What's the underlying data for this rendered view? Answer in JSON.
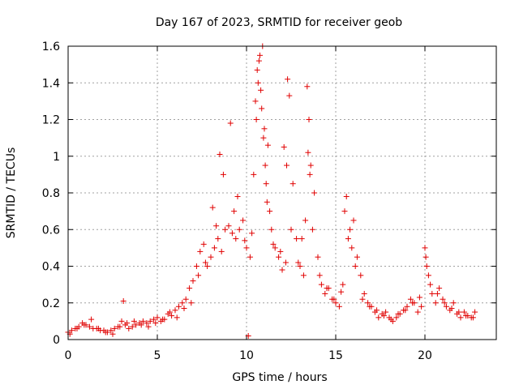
{
  "chart_data": {
    "type": "scatter",
    "title": "Day 167 of 2023, SRMTID for receiver geob",
    "xlabel": "GPS time / hours",
    "ylabel": "SRMTID / TECUs",
    "xlim": [
      0,
      24
    ],
    "ylim": [
      0,
      1.6
    ],
    "xticks": [
      0,
      5,
      10,
      15,
      20
    ],
    "xtick_labels": [
      "0",
      "5",
      "10",
      "15",
      "20"
    ],
    "yticks": [
      0,
      0.2,
      0.4,
      0.6,
      0.8,
      1.0,
      1.2,
      1.4,
      1.6
    ],
    "ytick_labels": [
      "0",
      "0.2",
      "0.4",
      "0.6",
      "0.8",
      "1",
      "1.2",
      "1.4",
      "1.6"
    ],
    "grid": true,
    "marker": "plus",
    "color": "#e00000",
    "series": [
      {
        "name": "SRMTID",
        "x": [
          0.0,
          0.2,
          0.4,
          0.6,
          0.8,
          1.0,
          1.2,
          1.4,
          1.6,
          1.8,
          2.0,
          2.2,
          2.4,
          2.6,
          2.8,
          3.0,
          3.1,
          3.2,
          3.4,
          3.6,
          3.8,
          4.0,
          4.2,
          4.4,
          4.6,
          4.8,
          5.0,
          5.2,
          5.4,
          5.6,
          5.8,
          6.0,
          6.2,
          6.4,
          6.6,
          6.8,
          7.0,
          7.2,
          7.4,
          7.6,
          7.8,
          8.0,
          8.2,
          8.4,
          8.5,
          8.6,
          8.8,
          9.0,
          9.1,
          9.2,
          9.4,
          9.6,
          9.8,
          10.0,
          10.1,
          10.2,
          10.4,
          10.5,
          10.6,
          10.7,
          10.8,
          10.9,
          11.0,
          11.1,
          11.2,
          11.3,
          11.4,
          11.6,
          11.8,
          12.0,
          12.2,
          12.3,
          12.4,
          12.6,
          12.8,
          13.0,
          13.2,
          13.4,
          13.5,
          13.6,
          13.8,
          14.0,
          14.2,
          14.4,
          14.6,
          14.8,
          15.0,
          15.2,
          15.4,
          15.6,
          15.8,
          16.0,
          16.2,
          16.4,
          16.6,
          16.8,
          17.0,
          17.2,
          17.4,
          17.6,
          17.8,
          18.0,
          18.2,
          18.4,
          18.6,
          18.8,
          19.0,
          19.2,
          19.4,
          19.6,
          19.8,
          20.0,
          20.1,
          20.2,
          20.4,
          20.6,
          20.8,
          21.0,
          21.2,
          21.4,
          21.6,
          21.8,
          22.0,
          22.2,
          22.4,
          22.6,
          22.8,
          0.1,
          0.5,
          0.9,
          1.3,
          1.7,
          2.1,
          2.5,
          2.9,
          3.3,
          3.7,
          4.1,
          4.5,
          4.9,
          5.3,
          5.7,
          6.1,
          6.5,
          6.9,
          7.3,
          7.7,
          8.1,
          8.3,
          8.7,
          9.3,
          9.5,
          9.9,
          10.3,
          10.55,
          10.65,
          10.75,
          10.85,
          10.95,
          11.05,
          11.15,
          11.5,
          11.9,
          12.1,
          12.25,
          12.5,
          12.9,
          13.1,
          13.3,
          13.45,
          13.55,
          13.7,
          14.1,
          14.5,
          14.9,
          15.3,
          15.5,
          15.7,
          15.9,
          16.1,
          16.5,
          16.9,
          17.3,
          17.7,
          18.1,
          18.5,
          18.9,
          19.3,
          19.7,
          20.05,
          20.3,
          20.7,
          21.1,
          21.5,
          21.9,
          22.3,
          22.7
        ],
        "y": [
          0.04,
          0.05,
          0.06,
          0.07,
          0.09,
          0.08,
          0.07,
          0.06,
          0.06,
          0.05,
          0.05,
          0.04,
          0.05,
          0.06,
          0.07,
          0.1,
          0.21,
          0.08,
          0.06,
          0.07,
          0.08,
          0.09,
          0.1,
          0.09,
          0.1,
          0.11,
          0.12,
          0.1,
          0.11,
          0.14,
          0.13,
          0.16,
          0.18,
          0.2,
          0.22,
          0.28,
          0.32,
          0.4,
          0.48,
          0.52,
          0.4,
          0.45,
          0.5,
          0.55,
          1.01,
          0.48,
          0.6,
          0.62,
          1.18,
          0.58,
          0.55,
          0.6,
          0.65,
          0.5,
          0.02,
          0.45,
          0.9,
          1.3,
          1.47,
          1.52,
          1.36,
          1.6,
          1.15,
          0.85,
          1.06,
          0.7,
          0.6,
          0.5,
          0.45,
          0.38,
          0.42,
          1.42,
          1.33,
          0.85,
          0.55,
          0.4,
          0.35,
          1.38,
          1.2,
          0.95,
          0.8,
          0.45,
          0.3,
          0.25,
          0.28,
          0.22,
          0.2,
          0.18,
          0.3,
          0.78,
          0.6,
          0.65,
          0.45,
          0.35,
          0.25,
          0.2,
          0.18,
          0.15,
          0.12,
          0.14,
          0.15,
          0.12,
          0.1,
          0.12,
          0.14,
          0.16,
          0.18,
          0.22,
          0.2,
          0.15,
          0.18,
          0.5,
          0.4,
          0.35,
          0.25,
          0.2,
          0.28,
          0.22,
          0.18,
          0.16,
          0.2,
          0.14,
          0.12,
          0.15,
          0.13,
          0.12,
          0.15,
          0.03,
          0.06,
          0.08,
          0.11,
          0.06,
          0.04,
          0.03,
          0.07,
          0.09,
          0.1,
          0.08,
          0.07,
          0.09,
          0.11,
          0.15,
          0.12,
          0.17,
          0.2,
          0.35,
          0.42,
          0.72,
          0.62,
          0.9,
          0.7,
          0.78,
          0.54,
          0.58,
          1.2,
          1.4,
          1.55,
          1.26,
          1.1,
          0.95,
          0.75,
          0.52,
          0.48,
          1.05,
          0.95,
          0.6,
          0.42,
          0.55,
          0.65,
          1.02,
          0.9,
          0.6,
          0.35,
          0.28,
          0.22,
          0.26,
          0.7,
          0.55,
          0.5,
          0.4,
          0.22,
          0.18,
          0.16,
          0.13,
          0.11,
          0.14,
          0.16,
          0.2,
          0.23,
          0.45,
          0.3,
          0.25,
          0.2,
          0.17,
          0.15,
          0.13,
          0.12
        ]
      }
    ]
  }
}
